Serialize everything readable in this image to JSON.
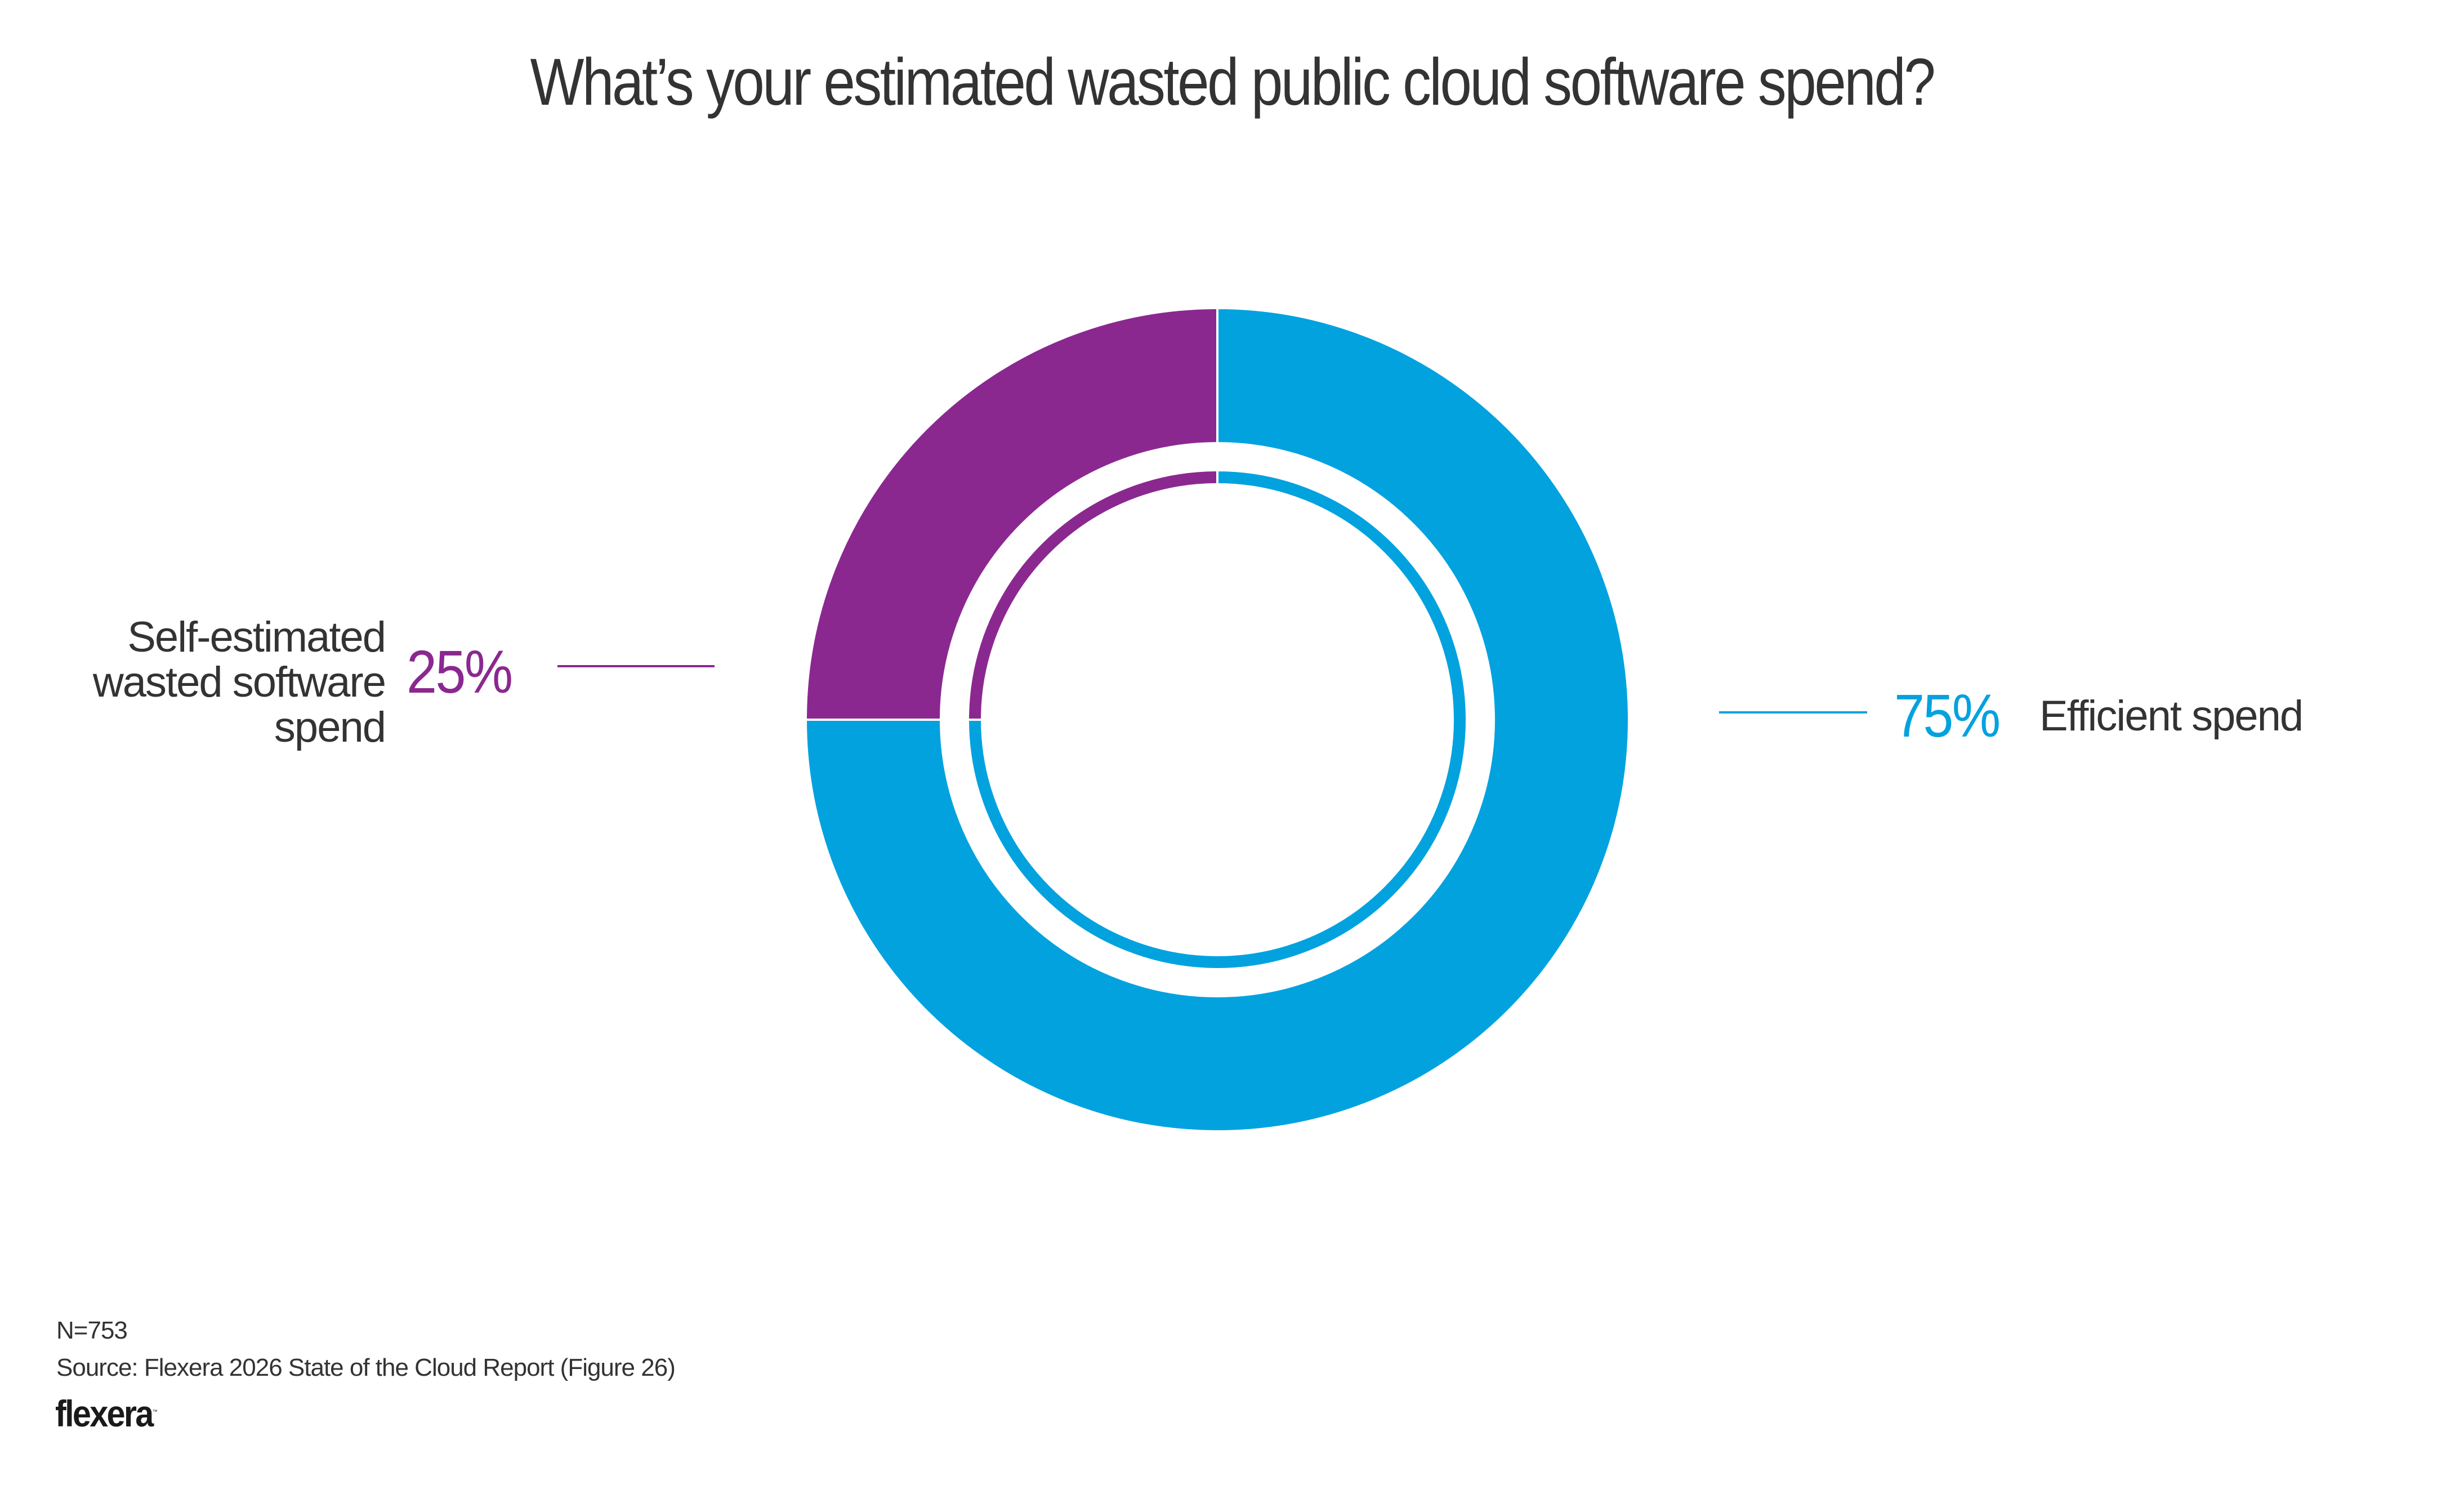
{
  "chart_data": {
    "type": "pie",
    "variant": "donut",
    "title": "What’s your estimated wasted public cloud software spend?",
    "start_angle_deg": 0,
    "direction": "clockwise-from-top-for-majority",
    "slices": [
      {
        "key": "wasted",
        "label": "Self-estimated wasted software spend",
        "label_lines": [
          "Self-estimated",
          "wasted software",
          "spend"
        ],
        "value": 25,
        "value_label": "25%",
        "color": "#8b2890",
        "label_side": "left"
      },
      {
        "key": "efficient",
        "label": "Efficient spend",
        "value": 75,
        "value_label": "75%",
        "color": "#02a2df",
        "label_side": "right"
      }
    ],
    "note_n": "N=753",
    "source": "Source: Flexera 2026 State of the Cloud Report (Figure 26)"
  },
  "branding": {
    "logo_text": "flexera",
    "logo_tm": "™"
  },
  "colors": {
    "text": "#333333",
    "wasted": "#8b2890",
    "efficient": "#02a2df",
    "background": "#ffffff"
  }
}
